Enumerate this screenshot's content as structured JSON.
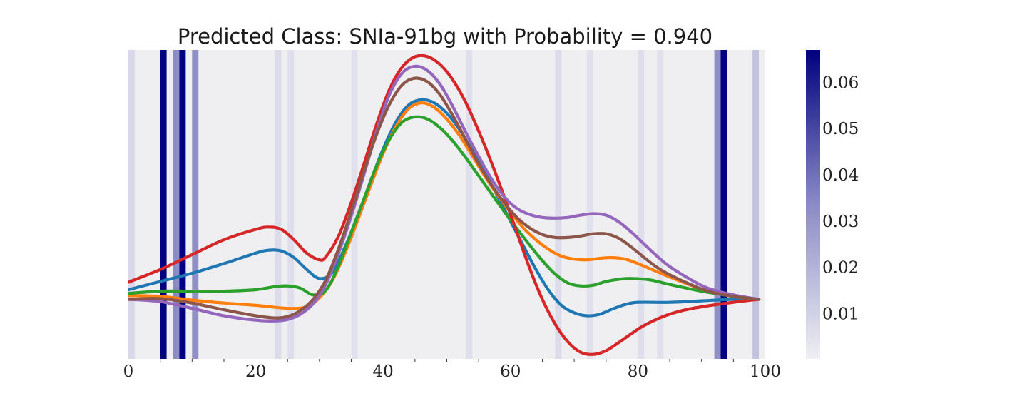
{
  "chart_data": {
    "type": "line",
    "title": "Predicted Class: SNIa-91bg with Probability = 0.940",
    "xlabel": "",
    "ylabel": "",
    "xlim": [
      0,
      100
    ],
    "ylim": [
      -0.8,
      3.35
    ],
    "x_ticks": [
      "0",
      "20",
      "40",
      "60",
      "80",
      "100"
    ],
    "y_ticks_visible": false,
    "grid": false,
    "background_color": "#efeff2",
    "series": [
      {
        "color": "#1f77b4",
        "points": [
          [
            0,
            0.13
          ],
          [
            5,
            0.24
          ],
          [
            10,
            0.35
          ],
          [
            15,
            0.48
          ],
          [
            20,
            0.62
          ],
          [
            22,
            0.66
          ],
          [
            24,
            0.65
          ],
          [
            26,
            0.56
          ],
          [
            28,
            0.4
          ],
          [
            30,
            0.28
          ],
          [
            32,
            0.36
          ],
          [
            34,
            0.7
          ],
          [
            36,
            1.12
          ],
          [
            38,
            1.58
          ],
          [
            40,
            2.02
          ],
          [
            42,
            2.38
          ],
          [
            44,
            2.61
          ],
          [
            46,
            2.68
          ],
          [
            48,
            2.64
          ],
          [
            50,
            2.5
          ],
          [
            52,
            2.28
          ],
          [
            54,
            2.0
          ],
          [
            56,
            1.7
          ],
          [
            58,
            1.38
          ],
          [
            60,
            1.05
          ],
          [
            62,
            0.72
          ],
          [
            64,
            0.4
          ],
          [
            66,
            0.12
          ],
          [
            68,
            -0.08
          ],
          [
            70,
            -0.18
          ],
          [
            72,
            -0.22
          ],
          [
            74,
            -0.2
          ],
          [
            76,
            -0.13
          ],
          [
            78,
            -0.07
          ],
          [
            80,
            -0.04
          ],
          [
            85,
            -0.04
          ],
          [
            90,
            -0.02
          ],
          [
            95,
            0.0
          ],
          [
            99,
            0.0
          ]
        ]
      },
      {
        "color": "#ff7f0e",
        "points": [
          [
            0,
            0.05
          ],
          [
            5,
            0.04
          ],
          [
            10,
            -0.01
          ],
          [
            15,
            -0.05
          ],
          [
            20,
            -0.08
          ],
          [
            25,
            -0.12
          ],
          [
            28,
            -0.1
          ],
          [
            30,
            0.02
          ],
          [
            32,
            0.25
          ],
          [
            34,
            0.62
          ],
          [
            36,
            1.06
          ],
          [
            38,
            1.52
          ],
          [
            40,
            1.96
          ],
          [
            42,
            2.32
          ],
          [
            44,
            2.56
          ],
          [
            46,
            2.64
          ],
          [
            48,
            2.58
          ],
          [
            50,
            2.42
          ],
          [
            52,
            2.2
          ],
          [
            54,
            1.93
          ],
          [
            56,
            1.65
          ],
          [
            58,
            1.4
          ],
          [
            60,
            1.17
          ],
          [
            62,
            0.96
          ],
          [
            64,
            0.8
          ],
          [
            66,
            0.67
          ],
          [
            68,
            0.58
          ],
          [
            70,
            0.54
          ],
          [
            72,
            0.53
          ],
          [
            74,
            0.55
          ],
          [
            76,
            0.56
          ],
          [
            78,
            0.54
          ],
          [
            80,
            0.48
          ],
          [
            85,
            0.3
          ],
          [
            90,
            0.14
          ],
          [
            95,
            0.04
          ],
          [
            99,
            0.0
          ]
        ]
      },
      {
        "color": "#2ca02c",
        "points": [
          [
            0,
            0.08
          ],
          [
            5,
            0.11
          ],
          [
            10,
            0.11
          ],
          [
            15,
            0.11
          ],
          [
            20,
            0.13
          ],
          [
            23,
            0.17
          ],
          [
            25,
            0.18
          ],
          [
            27,
            0.15
          ],
          [
            29,
            0.06
          ],
          [
            31,
            0.12
          ],
          [
            33,
            0.45
          ],
          [
            35,
            0.9
          ],
          [
            37,
            1.35
          ],
          [
            39,
            1.8
          ],
          [
            41,
            2.15
          ],
          [
            43,
            2.38
          ],
          [
            45,
            2.45
          ],
          [
            47,
            2.42
          ],
          [
            49,
            2.3
          ],
          [
            51,
            2.12
          ],
          [
            53,
            1.9
          ],
          [
            55,
            1.66
          ],
          [
            57,
            1.42
          ],
          [
            59,
            1.18
          ],
          [
            61,
            0.95
          ],
          [
            63,
            0.73
          ],
          [
            65,
            0.52
          ],
          [
            67,
            0.34
          ],
          [
            69,
            0.22
          ],
          [
            71,
            0.18
          ],
          [
            73,
            0.19
          ],
          [
            75,
            0.24
          ],
          [
            77,
            0.27
          ],
          [
            79,
            0.28
          ],
          [
            82,
            0.26
          ],
          [
            85,
            0.2
          ],
          [
            90,
            0.11
          ],
          [
            95,
            0.04
          ],
          [
            99,
            0.0
          ]
        ]
      },
      {
        "color": "#d62728",
        "points": [
          [
            0,
            0.23
          ],
          [
            5,
            0.4
          ],
          [
            10,
            0.6
          ],
          [
            15,
            0.8
          ],
          [
            20,
            0.94
          ],
          [
            22,
            0.97
          ],
          [
            24,
            0.94
          ],
          [
            26,
            0.8
          ],
          [
            28,
            0.62
          ],
          [
            30,
            0.53
          ],
          [
            31,
            0.57
          ],
          [
            33,
            0.85
          ],
          [
            35,
            1.3
          ],
          [
            37,
            1.82
          ],
          [
            39,
            2.36
          ],
          [
            41,
            2.82
          ],
          [
            43,
            3.12
          ],
          [
            45,
            3.26
          ],
          [
            47,
            3.26
          ],
          [
            49,
            3.15
          ],
          [
            51,
            2.94
          ],
          [
            53,
            2.64
          ],
          [
            55,
            2.26
          ],
          [
            57,
            1.84
          ],
          [
            59,
            1.38
          ],
          [
            61,
            0.9
          ],
          [
            63,
            0.42
          ],
          [
            65,
            0.0
          ],
          [
            67,
            -0.33
          ],
          [
            69,
            -0.57
          ],
          [
            71,
            -0.71
          ],
          [
            73,
            -0.74
          ],
          [
            75,
            -0.69
          ],
          [
            77,
            -0.58
          ],
          [
            79,
            -0.46
          ],
          [
            81,
            -0.35
          ],
          [
            84,
            -0.23
          ],
          [
            87,
            -0.15
          ],
          [
            90,
            -0.1
          ],
          [
            95,
            -0.04
          ],
          [
            99,
            0.0
          ]
        ]
      },
      {
        "color": "#9467bd",
        "points": [
          [
            0,
            0.0
          ],
          [
            5,
            -0.03
          ],
          [
            10,
            -0.12
          ],
          [
            15,
            -0.22
          ],
          [
            20,
            -0.28
          ],
          [
            23,
            -0.29
          ],
          [
            25,
            -0.27
          ],
          [
            27,
            -0.2
          ],
          [
            29,
            -0.06
          ],
          [
            31,
            0.2
          ],
          [
            33,
            0.62
          ],
          [
            35,
            1.12
          ],
          [
            37,
            1.68
          ],
          [
            39,
            2.26
          ],
          [
            41,
            2.75
          ],
          [
            43,
            3.04
          ],
          [
            45,
            3.13
          ],
          [
            47,
            3.07
          ],
          [
            49,
            2.88
          ],
          [
            51,
            2.58
          ],
          [
            53,
            2.24
          ],
          [
            55,
            1.92
          ],
          [
            57,
            1.62
          ],
          [
            59,
            1.38
          ],
          [
            61,
            1.22
          ],
          [
            63,
            1.14
          ],
          [
            65,
            1.1
          ],
          [
            67,
            1.09
          ],
          [
            69,
            1.1
          ],
          [
            71,
            1.13
          ],
          [
            73,
            1.15
          ],
          [
            75,
            1.13
          ],
          [
            77,
            1.04
          ],
          [
            79,
            0.9
          ],
          [
            81,
            0.74
          ],
          [
            83,
            0.58
          ],
          [
            85,
            0.44
          ],
          [
            88,
            0.28
          ],
          [
            91,
            0.15
          ],
          [
            95,
            0.06
          ],
          [
            99,
            0.0
          ]
        ]
      },
      {
        "color": "#8c564b",
        "points": [
          [
            0,
            0.0
          ],
          [
            5,
            0.01
          ],
          [
            10,
            -0.05
          ],
          [
            15,
            -0.14
          ],
          [
            20,
            -0.22
          ],
          [
            23,
            -0.25
          ],
          [
            25,
            -0.23
          ],
          [
            27,
            -0.15
          ],
          [
            29,
            0.0
          ],
          [
            31,
            0.26
          ],
          [
            33,
            0.68
          ],
          [
            35,
            1.18
          ],
          [
            37,
            1.72
          ],
          [
            39,
            2.22
          ],
          [
            41,
            2.62
          ],
          [
            43,
            2.88
          ],
          [
            45,
            2.97
          ],
          [
            47,
            2.92
          ],
          [
            49,
            2.74
          ],
          [
            51,
            2.46
          ],
          [
            53,
            2.14
          ],
          [
            55,
            1.82
          ],
          [
            57,
            1.54
          ],
          [
            59,
            1.3
          ],
          [
            61,
            1.1
          ],
          [
            63,
            0.96
          ],
          [
            65,
            0.87
          ],
          [
            67,
            0.83
          ],
          [
            69,
            0.83
          ],
          [
            71,
            0.85
          ],
          [
            73,
            0.88
          ],
          [
            75,
            0.88
          ],
          [
            77,
            0.82
          ],
          [
            79,
            0.7
          ],
          [
            81,
            0.56
          ],
          [
            83,
            0.43
          ],
          [
            85,
            0.33
          ],
          [
            88,
            0.21
          ],
          [
            91,
            0.11
          ],
          [
            95,
            0.04
          ],
          [
            99,
            0.0
          ]
        ]
      }
    ],
    "attention_bands": [
      {
        "x": 0.5,
        "value": 0.008
      },
      {
        "x": 5.5,
        "value": 0.067
      },
      {
        "x": 7.5,
        "value": 0.033
      },
      {
        "x": 8.5,
        "value": 0.067
      },
      {
        "x": 10.5,
        "value": 0.032
      },
      {
        "x": 23.5,
        "value": 0.007
      },
      {
        "x": 25.5,
        "value": 0.006
      },
      {
        "x": 35.5,
        "value": 0.005
      },
      {
        "x": 53.5,
        "value": 0.006
      },
      {
        "x": 67.5,
        "value": 0.007
      },
      {
        "x": 72.5,
        "value": 0.005
      },
      {
        "x": 80.5,
        "value": 0.006
      },
      {
        "x": 83.5,
        "value": 0.005
      },
      {
        "x": 92.5,
        "value": 0.032
      },
      {
        "x": 93.5,
        "value": 0.067
      },
      {
        "x": 98.5,
        "value": 0.015
      }
    ],
    "colorbar": {
      "min": 0.0002,
      "max": 0.067,
      "ticks": [
        "0.01",
        "0.02",
        "0.03",
        "0.04",
        "0.05",
        "0.06"
      ],
      "color_low": "#efeff4",
      "color_high": "#000080"
    }
  }
}
